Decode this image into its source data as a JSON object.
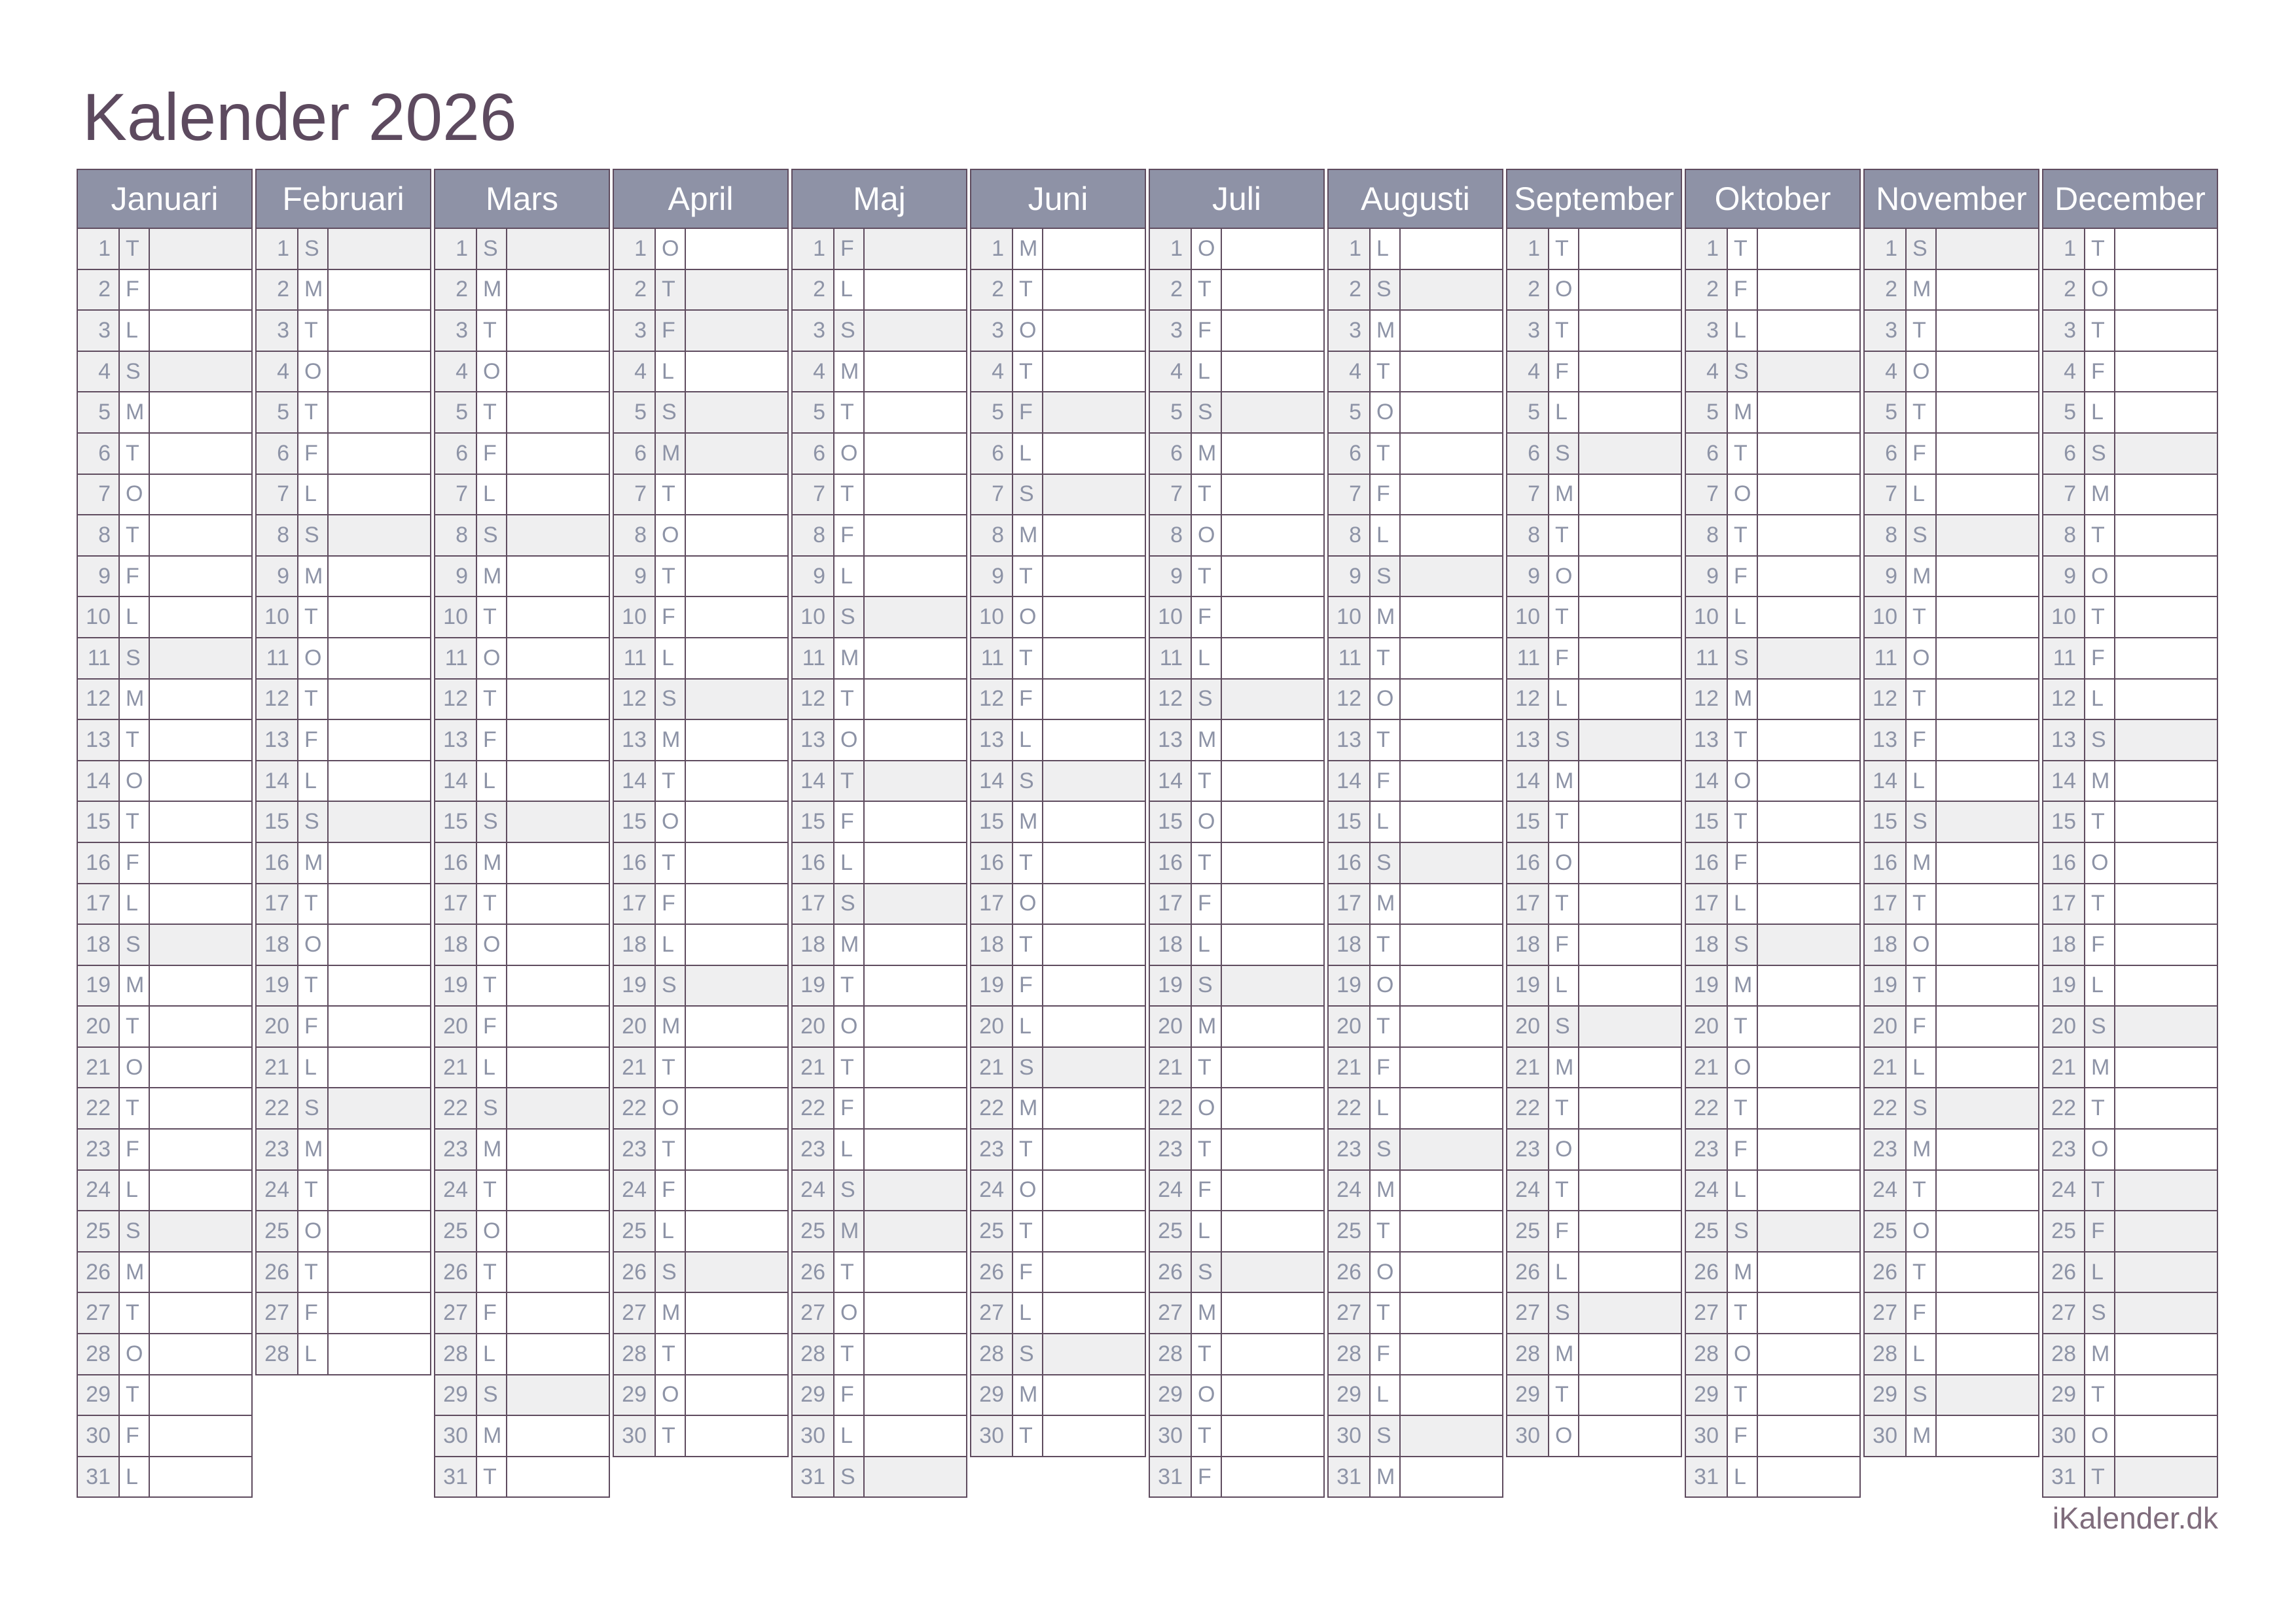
{
  "header": {
    "title": "Kalender 2026"
  },
  "footer": {
    "site": "iKalender.dk"
  },
  "colors": {
    "header_bg": "#8e92a6",
    "header_text": "#ffffff",
    "grid_line": "#5f4c5f",
    "day_text": "#8d93a6",
    "shade_bg": "#efeff0",
    "title_text": "#5d4a5f",
    "footer_text": "#7f6c7c",
    "page_bg": "#ffffff"
  },
  "weekday_letters": {
    "monday": "M",
    "tuesday": "T",
    "wednesday": "O",
    "thursday": "T",
    "friday": "F",
    "saturday": "L",
    "sunday": "S"
  },
  "shading_note": "shaded = sundays and public holidays",
  "months": [
    {
      "name": "Januari",
      "days": 31,
      "letters": "TFLSMTOTFLSMTOTFLSMTOTFLSMTOTFL",
      "shaded": [
        1,
        4,
        11,
        18,
        25
      ]
    },
    {
      "name": "Februari",
      "days": 28,
      "letters": "SMTOTFLSMTOTFLSMTOTFLSMTOTFL",
      "shaded": [
        1,
        8,
        15,
        22
      ]
    },
    {
      "name": "Mars",
      "days": 31,
      "letters": "SMTOTFLSMTOTFLSMTOTFLSMTOTFLSMT",
      "shaded": [
        1,
        8,
        15,
        22,
        29
      ]
    },
    {
      "name": "April",
      "days": 30,
      "letters": "OTFLSMTOTFLSMTOTFLSMTOTFLSMTOT",
      "shaded": [
        2,
        3,
        5,
        6,
        12,
        19,
        26
      ]
    },
    {
      "name": "Maj",
      "days": 31,
      "letters": "FLSMTOTFLSMTOTFLSMTOTFLSMTOTFLS",
      "shaded": [
        1,
        3,
        10,
        14,
        17,
        24,
        25,
        31
      ]
    },
    {
      "name": "Juni",
      "days": 30,
      "letters": "MTOTFLSMTOTFLSMTOTFLSMTOTFLSMT",
      "shaded": [
        5,
        7,
        14,
        21,
        28
      ]
    },
    {
      "name": "Juli",
      "days": 31,
      "letters": "OTFLSMTOTFLSMTOTFLSMTOTFLSMTOTF",
      "shaded": [
        5,
        12,
        19,
        26
      ]
    },
    {
      "name": "Augusti",
      "days": 31,
      "letters": "LSMTOTFLSMTOTFLSMTOTFLSMTOTFLSM",
      "shaded": [
        2,
        9,
        16,
        23,
        30
      ]
    },
    {
      "name": "September",
      "days": 30,
      "letters": "TOTFLSMTOTFLSMTOTFLSMTOTFLSMTO",
      "shaded": [
        6,
        13,
        20,
        27
      ]
    },
    {
      "name": "Oktober",
      "days": 31,
      "letters": "TFLSMTOTFLSMTOTFLSMTOTFLSMTOTFL",
      "shaded": [
        4,
        11,
        18,
        25
      ]
    },
    {
      "name": "November",
      "days": 30,
      "letters": "SMTOTFLSMTOTFLSMTOTFLSMTOTFLSM",
      "shaded": [
        1,
        8,
        15,
        22,
        29
      ]
    },
    {
      "name": "December",
      "days": 31,
      "letters": "TOTFLSMTOTFLSMTOTFLSMTOTFLSMTOT",
      "shaded": [
        6,
        13,
        20,
        24,
        25,
        26,
        27,
        31
      ]
    }
  ]
}
